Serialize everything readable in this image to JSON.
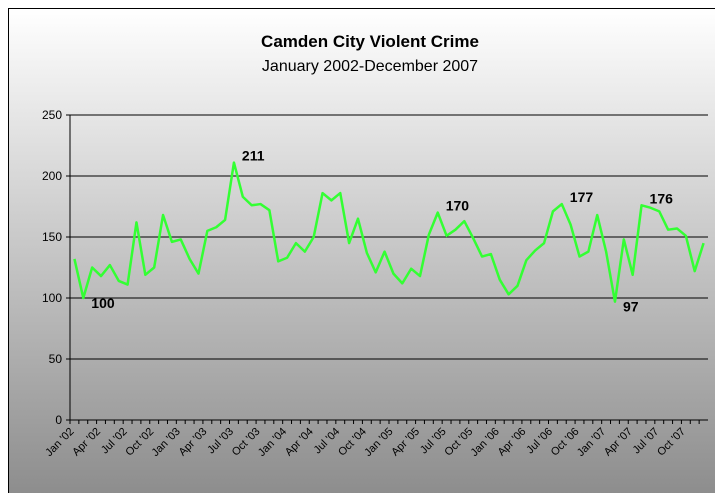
{
  "chart_data": {
    "type": "line",
    "title": "Camden City Violent Crime",
    "subtitle": "January 2002-December 2007",
    "categories": [
      "Jan '02",
      null,
      null,
      "Apr '02",
      null,
      null,
      "Jul '02",
      null,
      null,
      "Oct '02",
      null,
      null,
      "Jan '03",
      null,
      null,
      "Apr '03",
      null,
      null,
      "Jul '03",
      null,
      null,
      "Oct '03",
      null,
      null,
      "Jan '04",
      null,
      null,
      "Apr '04",
      null,
      null,
      "Jul '04",
      null,
      null,
      "Oct '04",
      null,
      null,
      "Jan '05",
      null,
      null,
      "Apr '05",
      null,
      null,
      "Jul '05",
      null,
      null,
      "Oct '05",
      null,
      null,
      "Jan '06",
      null,
      null,
      "Apr '06",
      null,
      null,
      "Jul '06",
      null,
      null,
      "Oct '06",
      null,
      null,
      "Jan '07",
      null,
      null,
      "Apr '07",
      null,
      null,
      "Jul '07",
      null,
      null,
      "Oct '07",
      null,
      null
    ],
    "series": [
      {
        "name": "Violent Crime",
        "color": "#33ff33",
        "values": [
          132,
          100,
          125,
          118,
          127,
          114,
          111,
          162,
          119,
          125,
          168,
          146,
          148,
          132,
          120,
          155,
          158,
          164,
          211,
          183,
          176,
          177,
          172,
          130,
          133,
          145,
          138,
          150,
          186,
          180,
          186,
          145,
          165,
          137,
          121,
          138,
          120,
          112,
          124,
          118,
          152,
          170,
          151,
          156,
          163,
          149,
          134,
          136,
          115,
          103,
          110,
          131,
          139,
          145,
          171,
          177,
          160,
          134,
          138,
          168,
          138,
          97,
          148,
          119,
          176,
          174,
          171,
          156,
          157,
          151,
          122,
          145
        ]
      }
    ],
    "data_labels": [
      1,
      18,
      41,
      55,
      61,
      64
    ],
    "ylim": [
      0,
      250
    ],
    "yticks": [
      0,
      50,
      100,
      150,
      200,
      250
    ],
    "grid": true
  }
}
